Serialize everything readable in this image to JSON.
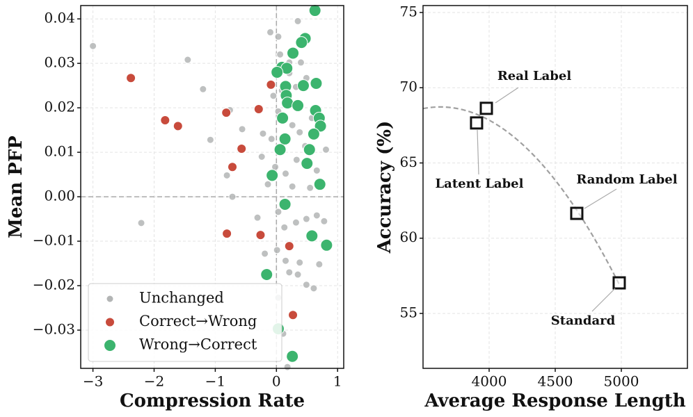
{
  "chart_data": [
    {
      "type": "scatter",
      "xlabel": "Compression Rate",
      "ylabel": "Mean PFP",
      "xlim": [
        -3.2,
        1.1
      ],
      "ylim": [
        -0.0386,
        0.043
      ],
      "xticks": [
        {
          "value": -3,
          "label": "−3"
        },
        {
          "value": -2,
          "label": "−2"
        },
        {
          "value": -1,
          "label": "−1"
        },
        0,
        1
      ],
      "yticks": [
        {
          "value": -0.03,
          "label": "−0.03"
        },
        {
          "value": -0.02,
          "label": "−0.02"
        },
        {
          "value": -0.01,
          "label": "−0.01"
        },
        {
          "value": 0,
          "label": "0.00"
        },
        0.01,
        0.02,
        0.03,
        0.04
      ],
      "grid": true,
      "hlines": [
        0
      ],
      "vlines": [
        0
      ],
      "legend": "lower left",
      "series": [
        {
          "name": "Unchanged",
          "color": "#b3b5b5",
          "x": [
            -3.0,
            -1.45,
            -1.2,
            -1.08,
            -2.21,
            -0.76,
            -0.56,
            -0.81,
            -0.72,
            -0.31,
            -0.24,
            -0.22,
            -0.1,
            0.03,
            0.35,
            0.06,
            0.21,
            0.4,
            0.49,
            -0.05,
            0.32,
            0.03,
            0.26,
            0.38,
            0.47,
            0.33,
            -0.02,
            0.15,
            0.26,
            0.55,
            0.81,
            0.66,
            0.03,
            0.13,
            0.32,
            0.49,
            0.78,
            0.66,
            0.01,
            0.15,
            0.38,
            0.21,
            0.35,
            0.49,
            0.61,
            0.7,
            0.03,
            0.11,
            0.18,
            -0.19,
            -0.14,
            0.09,
            -0.08,
            0.58,
            0.21
          ],
          "values": [
            0.0339,
            0.0308,
            0.0242,
            0.0128,
            -0.0059,
            0.0195,
            0.0152,
            0.0048,
            0.0,
            -0.0047,
            0.009,
            0.0142,
            0.037,
            0.036,
            0.0395,
            0.032,
            0.0302,
            0.0302,
            0.0267,
            0.0227,
            0.0247,
            0.0192,
            0.0161,
            0.0145,
            0.0114,
            0.0083,
            0.0067,
            0.0052,
            0.0023,
            0.002,
            0.0106,
            0.0059,
            -0.0034,
            -0.0069,
            -0.0058,
            -0.005,
            -0.0055,
            -0.0042,
            -0.012,
            -0.0144,
            -0.0148,
            -0.017,
            -0.0175,
            -0.0198,
            -0.0206,
            -0.0152,
            -0.0227,
            -0.0308,
            -0.0383,
            -0.0128,
            0.0028,
            0.0239,
            0.013,
            0.0177,
            0.0278
          ]
        },
        {
          "name": "Correct→Wrong",
          "color": "#c84b3c",
          "x": [
            -2.38,
            -1.82,
            -1.61,
            -0.82,
            -0.57,
            -0.72,
            -0.81,
            -0.29,
            -0.09,
            -0.26,
            0.21,
            0.27
          ],
          "values": [
            0.0267,
            0.0172,
            0.0159,
            0.0189,
            0.0108,
            0.0067,
            -0.0083,
            0.0197,
            0.0252,
            -0.0086,
            -0.0111,
            -0.0266
          ]
        },
        {
          "name": "Wrong→Correct",
          "color": "#3cb46e",
          "x": [
            0.63,
            0.47,
            0.41,
            0.27,
            0.09,
            0.17,
            0.01,
            0.15,
            0.44,
            0.65,
            0.16,
            0.18,
            0.35,
            0.64,
            0.7,
            0.1,
            0.72,
            0.61,
            0.14,
            0.54,
            0.06,
            0.5,
            -0.07,
            0.71,
            0.14,
            0.58,
            0.82,
            -0.16,
            0.26,
            0.03
          ],
          "values": [
            0.0419,
            0.0356,
            0.0347,
            0.0323,
            0.0291,
            0.0289,
            0.028,
            0.0248,
            0.025,
            0.0255,
            0.0228,
            0.0211,
            0.0205,
            0.0194,
            0.0177,
            0.0177,
            0.0159,
            0.0141,
            0.013,
            0.0106,
            0.0106,
            0.0075,
            0.0048,
            0.0028,
            -0.0017,
            -0.0088,
            -0.0109,
            -0.0175,
            -0.0359,
            -0.0297
          ]
        }
      ]
    },
    {
      "type": "scatter",
      "xlabel": "Average Response Length",
      "ylabel": "Accuracy (%)",
      "xlim": [
        3500,
        5500
      ],
      "ylim": [
        51.35,
        75.46
      ],
      "xticks": [
        4000,
        4500,
        5000
      ],
      "yticks": [
        55,
        60,
        65,
        70,
        75
      ],
      "grid": true,
      "marker": "square",
      "trend": "quadratic",
      "series": [
        {
          "color": "#111111",
          "x": [
            3979,
            3905,
            4663,
            4984
          ],
          "values": [
            68.63,
            67.66,
            61.65,
            57.03
          ],
          "point_labels": [
            "Real Label",
            "Latent Label",
            "Random Label",
            "Standard"
          ]
        }
      ]
    }
  ]
}
